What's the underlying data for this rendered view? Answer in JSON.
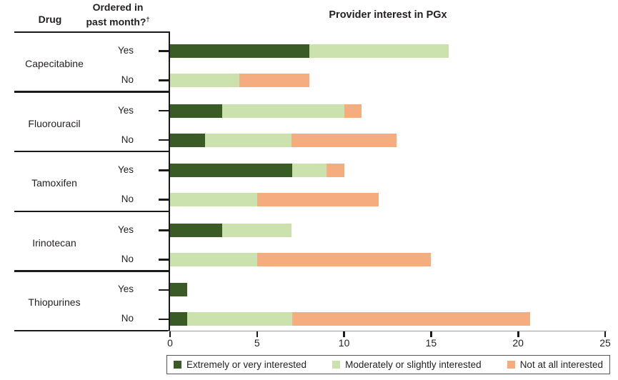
{
  "header": {
    "drug": "Drug",
    "ordered_line1": "Ordered in",
    "ordered_line2": "past month?",
    "dagger": "†"
  },
  "chart_data": {
    "type": "bar",
    "orientation": "horizontal",
    "stacked": true,
    "title": "Provider interest in PGx",
    "xlabel": "",
    "ylabel": "",
    "xlim": [
      0,
      25
    ],
    "xticks": [
      0,
      5,
      10,
      15,
      20,
      25
    ],
    "grid": false,
    "legend_position": "bottom",
    "series": [
      {
        "name": "Extremely or very interested",
        "color": "#3a5a26"
      },
      {
        "name": "Moderately or slightly interested",
        "color": "#cbe2ae"
      },
      {
        "name": "Not at all interested",
        "color": "#f5ad80"
      }
    ],
    "groups": [
      {
        "drug": "Capecitabine",
        "rows": [
          {
            "label": "Yes",
            "values": [
              8,
              8,
              0
            ]
          },
          {
            "label": "No",
            "values": [
              0,
              4,
              4
            ]
          }
        ]
      },
      {
        "drug": "Fluorouracil",
        "rows": [
          {
            "label": "Yes",
            "values": [
              3,
              7,
              1
            ]
          },
          {
            "label": "No",
            "values": [
              2,
              5,
              6
            ]
          }
        ]
      },
      {
        "drug": "Tamoxifen",
        "rows": [
          {
            "label": "Yes",
            "values": [
              7,
              2,
              1
            ]
          },
          {
            "label": "No",
            "values": [
              0,
              5,
              7
            ]
          }
        ]
      },
      {
        "drug": "Irinotecan",
        "rows": [
          {
            "label": "Yes",
            "values": [
              3,
              4,
              0
            ]
          },
          {
            "label": "No",
            "values": [
              0,
              5,
              10
            ]
          }
        ]
      },
      {
        "drug": "Thiopurines",
        "rows": [
          {
            "label": "Yes",
            "values": [
              1,
              0,
              0
            ]
          },
          {
            "label": "No",
            "values": [
              1,
              6,
              13.7
            ]
          }
        ]
      }
    ]
  }
}
